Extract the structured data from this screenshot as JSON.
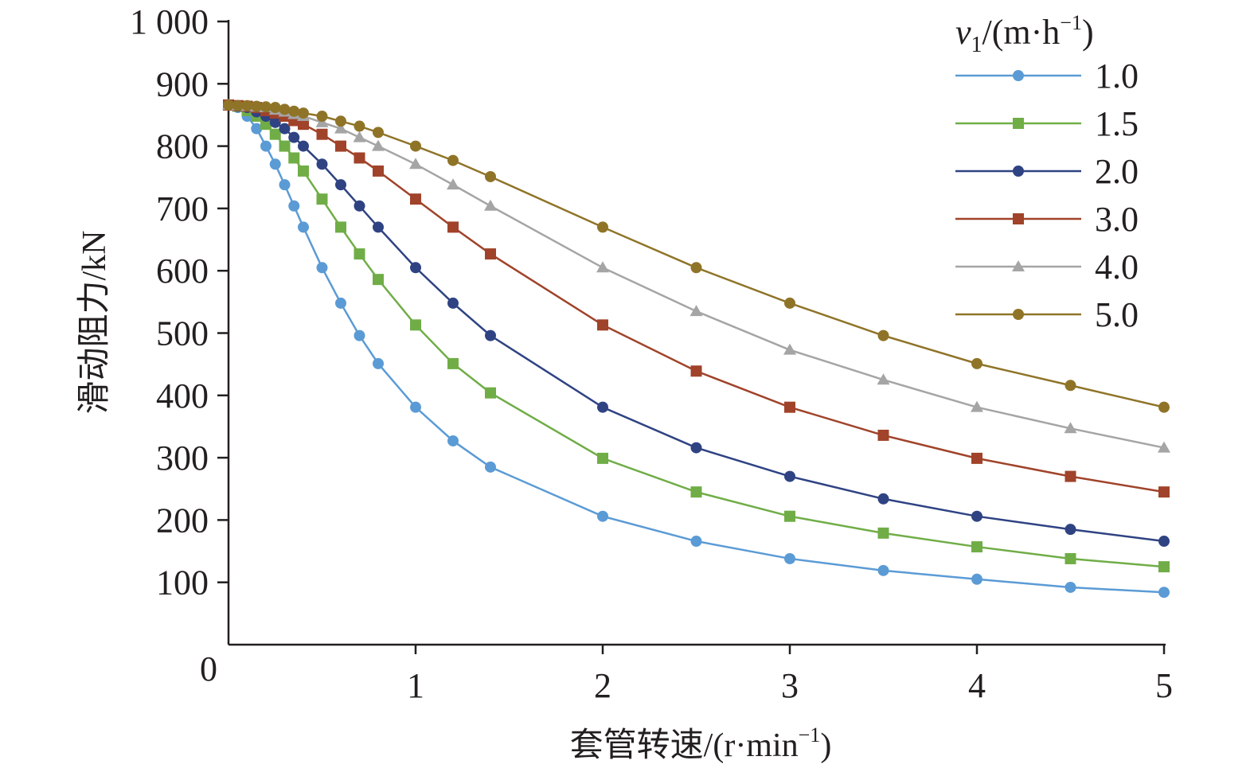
{
  "chart_data": {
    "type": "line",
    "title": "",
    "xlabel": "套管转速/(r·min",
    "xlabel_sup": "−1",
    "xlabel_close": ")",
    "ylabel": "滑动阻力/kN",
    "xlim": [
      0,
      5
    ],
    "ylim": [
      0,
      1000
    ],
    "grid": false,
    "legend_placement": "top-right",
    "legend_title": {
      "var": "v",
      "sub": "1",
      "unit": "/(m·h",
      "sup": "−1",
      "close": ")"
    },
    "x_ticks": [
      1,
      2,
      3,
      4,
      5
    ],
    "x_tick_labels": [
      "1",
      "2",
      "3",
      "4",
      "5"
    ],
    "y_ticks": [
      100,
      200,
      300,
      400,
      500,
      600,
      700,
      800,
      900,
      1000
    ],
    "y_tick_labels": [
      "100",
      "200",
      "300",
      "400",
      "500",
      "600",
      "700",
      "800",
      "900",
      "1 000"
    ],
    "origin_label": "0",
    "x": [
      0,
      0.05,
      0.1,
      0.15,
      0.2,
      0.25,
      0.3,
      0.35,
      0.4,
      0.5,
      0.6,
      0.7,
      0.8,
      1.0,
      1.2,
      1.4,
      2,
      2.5,
      3,
      3.5,
      4,
      4.5,
      5
    ],
    "series": [
      {
        "name": "1.0",
        "color": "#5b9bd5",
        "marker": "circle",
        "values": [
          866,
          862,
          848,
          828,
          800,
          771,
          738,
          704,
          670,
          605,
          548,
          496,
          451,
          381,
          327,
          285,
          206,
          166,
          138,
          119,
          105,
          92,
          84
        ]
      },
      {
        "name": "1.5",
        "color": "#70ad47",
        "marker": "square",
        "values": [
          866,
          864,
          857,
          848,
          835,
          819,
          800,
          781,
          760,
          715,
          670,
          627,
          586,
          513,
          451,
          404,
          299,
          245,
          206,
          179,
          157,
          138,
          125
        ]
      },
      {
        "name": "2.0",
        "color": "#2f4383",
        "marker": "circle",
        "values": [
          866,
          864,
          862,
          855,
          848,
          838,
          828,
          814,
          800,
          771,
          738,
          704,
          670,
          605,
          548,
          496,
          381,
          316,
          270,
          234,
          206,
          185,
          166
        ]
      },
      {
        "name": "3.0",
        "color": "#a0432a",
        "marker": "square",
        "values": [
          866,
          865,
          864,
          862,
          857,
          853,
          848,
          841,
          835,
          819,
          800,
          781,
          760,
          715,
          670,
          627,
          513,
          439,
          381,
          336,
          299,
          270,
          245
        ]
      },
      {
        "name": "4.0",
        "color": "#a5a5a5",
        "marker": "triangle",
        "values": [
          866,
          865,
          864,
          863,
          862,
          858,
          855,
          851,
          848,
          838,
          828,
          814,
          800,
          771,
          738,
          704,
          605,
          535,
          473,
          425,
          381,
          347,
          316
        ]
      },
      {
        "name": "5.0",
        "color": "#8f7428",
        "marker": "circle",
        "values": [
          866,
          865,
          865,
          864,
          863,
          862,
          859,
          856,
          853,
          848,
          840,
          832,
          822,
          800,
          777,
          751,
          670,
          605,
          548,
          496,
          451,
          416,
          381
        ]
      }
    ]
  }
}
